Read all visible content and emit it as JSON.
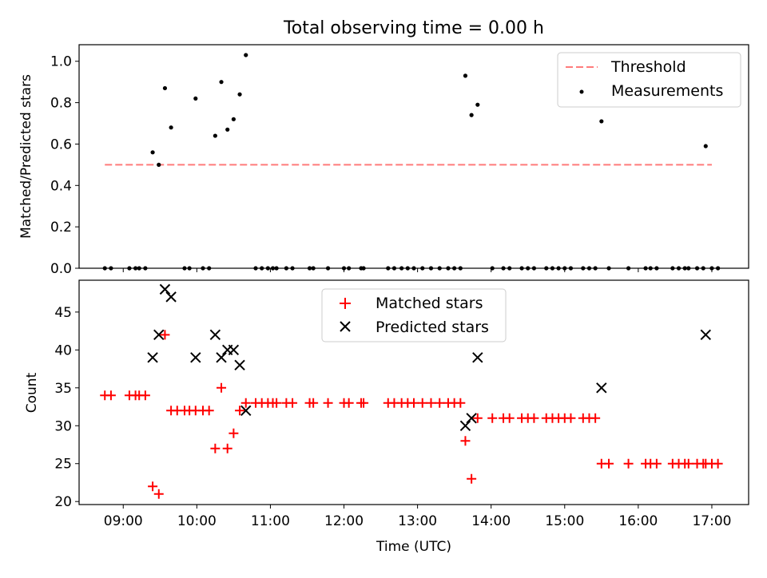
{
  "title": "Total observing time = 0.00 h",
  "colors": {
    "threshold": "#ff7b7b",
    "matched": "#ff0000",
    "predicted": "#000000",
    "measurement": "#000000"
  },
  "chart_data": [
    {
      "type": "scatter",
      "ylabel": "Matched/Predicted stars",
      "xlim": [
        "08:24",
        "17:30"
      ],
      "ylim": [
        0,
        1.08
      ],
      "y_ticks": [
        0.0,
        0.2,
        0.4,
        0.6,
        0.8,
        1.0
      ],
      "y_tick_labels": [
        "0.0",
        "0.2",
        "0.4",
        "0.6",
        "0.8",
        "1.0"
      ],
      "legend_position": "upper right",
      "series": [
        {
          "name": "Threshold",
          "style": "dashed-line",
          "x": [
            "08:45",
            "17:00"
          ],
          "y": [
            0.5,
            0.5
          ]
        },
        {
          "name": "Measurements",
          "style": "dot",
          "points": [
            [
              "08:45",
              0
            ],
            [
              "08:50",
              0
            ],
            [
              "09:05",
              0
            ],
            [
              "09:10",
              0
            ],
            [
              "09:13",
              0
            ],
            [
              "09:18",
              0
            ],
            [
              "09:24",
              0.56
            ],
            [
              "09:29",
              0.5
            ],
            [
              "09:34",
              0.87
            ],
            [
              "09:39",
              0.68
            ],
            [
              "09:50",
              0
            ],
            [
              "09:54",
              0
            ],
            [
              "09:59",
              0.82
            ],
            [
              "10:05",
              0
            ],
            [
              "10:10",
              0
            ],
            [
              "10:15",
              0.64
            ],
            [
              "10:20",
              0.9
            ],
            [
              "10:25",
              0.67
            ],
            [
              "10:30",
              0.72
            ],
            [
              "10:35",
              0.84
            ],
            [
              "10:40",
              1.03
            ],
            [
              "10:48",
              0
            ],
            [
              "10:53",
              0
            ],
            [
              "10:58",
              0
            ],
            [
              "11:02",
              0
            ],
            [
              "11:05",
              0
            ],
            [
              "11:13",
              0
            ],
            [
              "11:18",
              0
            ],
            [
              "11:32",
              0
            ],
            [
              "11:35",
              0
            ],
            [
              "11:47",
              0
            ],
            [
              "12:00",
              0
            ],
            [
              "12:04",
              0
            ],
            [
              "12:14",
              0
            ],
            [
              "12:16",
              0
            ],
            [
              "12:36",
              0
            ],
            [
              "12:41",
              0
            ],
            [
              "12:47",
              0
            ],
            [
              "12:52",
              0
            ],
            [
              "12:57",
              0
            ],
            [
              "13:04",
              0
            ],
            [
              "13:11",
              0
            ],
            [
              "13:18",
              0
            ],
            [
              "13:25",
              0
            ],
            [
              "13:30",
              0
            ],
            [
              "13:35",
              0
            ],
            [
              "13:39",
              0.93
            ],
            [
              "13:44",
              0.74
            ],
            [
              "13:49",
              0.79
            ],
            [
              "14:01",
              0
            ],
            [
              "14:10",
              0
            ],
            [
              "14:15",
              0
            ],
            [
              "14:25",
              0
            ],
            [
              "14:30",
              0
            ],
            [
              "14:35",
              0
            ],
            [
              "14:45",
              0
            ],
            [
              "14:50",
              0
            ],
            [
              "14:55",
              0
            ],
            [
              "15:00",
              0
            ],
            [
              "15:05",
              0
            ],
            [
              "15:15",
              0
            ],
            [
              "15:20",
              0
            ],
            [
              "15:25",
              0
            ],
            [
              "15:30",
              0.71
            ],
            [
              "15:36",
              0
            ],
            [
              "15:52",
              0
            ],
            [
              "16:06",
              0
            ],
            [
              "16:10",
              0
            ],
            [
              "16:15",
              0
            ],
            [
              "16:28",
              0
            ],
            [
              "16:33",
              0
            ],
            [
              "16:38",
              0
            ],
            [
              "16:41",
              0
            ],
            [
              "16:48",
              0
            ],
            [
              "16:53",
              0
            ],
            [
              "16:55",
              0.59
            ],
            [
              "17:00",
              0
            ],
            [
              "17:05",
              0
            ]
          ]
        }
      ]
    },
    {
      "type": "scatter",
      "ylabel": "Count",
      "xlabel": "Time (UTC)",
      "xlim": [
        "08:24",
        "17:30"
      ],
      "ylim": [
        19.6,
        49.2
      ],
      "y_ticks": [
        20,
        25,
        30,
        35,
        40,
        45
      ],
      "y_tick_labels": [
        "20",
        "25",
        "30",
        "35",
        "40",
        "45"
      ],
      "x_ticks": [
        "09:00",
        "10:00",
        "11:00",
        "12:00",
        "13:00",
        "14:00",
        "15:00",
        "16:00",
        "17:00"
      ],
      "x_tick_labels": [
        "09:00",
        "10:00",
        "11:00",
        "12:00",
        "13:00",
        "14:00",
        "15:00",
        "16:00",
        "17:00"
      ],
      "legend_position": "upper center",
      "series": [
        {
          "name": "Matched stars",
          "style": "plus",
          "points": [
            [
              "08:45",
              34
            ],
            [
              "08:50",
              34
            ],
            [
              "09:05",
              34
            ],
            [
              "09:10",
              34
            ],
            [
              "09:13",
              34
            ],
            [
              "09:18",
              34
            ],
            [
              "09:24",
              22
            ],
            [
              "09:29",
              21
            ],
            [
              "09:34",
              42
            ],
            [
              "09:39",
              32
            ],
            [
              "09:44",
              32
            ],
            [
              "09:50",
              32
            ],
            [
              "09:54",
              32
            ],
            [
              "09:59",
              32
            ],
            [
              "10:05",
              32
            ],
            [
              "10:10",
              32
            ],
            [
              "10:15",
              27
            ],
            [
              "10:20",
              35
            ],
            [
              "10:25",
              27
            ],
            [
              "10:30",
              29
            ],
            [
              "10:35",
              32
            ],
            [
              "10:40",
              33
            ],
            [
              "10:48",
              33
            ],
            [
              "10:53",
              33
            ],
            [
              "10:58",
              33
            ],
            [
              "11:02",
              33
            ],
            [
              "11:05",
              33
            ],
            [
              "11:13",
              33
            ],
            [
              "11:18",
              33
            ],
            [
              "11:32",
              33
            ],
            [
              "11:35",
              33
            ],
            [
              "11:47",
              33
            ],
            [
              "12:00",
              33
            ],
            [
              "12:04",
              33
            ],
            [
              "12:14",
              33
            ],
            [
              "12:16",
              33
            ],
            [
              "12:36",
              33
            ],
            [
              "12:41",
              33
            ],
            [
              "12:47",
              33
            ],
            [
              "12:52",
              33
            ],
            [
              "12:57",
              33
            ],
            [
              "13:04",
              33
            ],
            [
              "13:11",
              33
            ],
            [
              "13:18",
              33
            ],
            [
              "13:25",
              33
            ],
            [
              "13:30",
              33
            ],
            [
              "13:35",
              33
            ],
            [
              "13:39",
              28
            ],
            [
              "13:44",
              23
            ],
            [
              "13:49",
              31
            ],
            [
              "14:01",
              31
            ],
            [
              "14:10",
              31
            ],
            [
              "14:15",
              31
            ],
            [
              "14:25",
              31
            ],
            [
              "14:30",
              31
            ],
            [
              "14:35",
              31
            ],
            [
              "14:45",
              31
            ],
            [
              "14:50",
              31
            ],
            [
              "14:55",
              31
            ],
            [
              "15:00",
              31
            ],
            [
              "15:05",
              31
            ],
            [
              "15:15",
              31
            ],
            [
              "15:20",
              31
            ],
            [
              "15:25",
              31
            ],
            [
              "15:30",
              25
            ],
            [
              "15:36",
              25
            ],
            [
              "15:52",
              25
            ],
            [
              "16:06",
              25
            ],
            [
              "16:10",
              25
            ],
            [
              "16:15",
              25
            ],
            [
              "16:28",
              25
            ],
            [
              "16:33",
              25
            ],
            [
              "16:38",
              25
            ],
            [
              "16:41",
              25
            ],
            [
              "16:48",
              25
            ],
            [
              "16:53",
              25
            ],
            [
              "16:55",
              25
            ],
            [
              "17:00",
              25
            ],
            [
              "17:05",
              25
            ]
          ]
        },
        {
          "name": "Predicted stars",
          "style": "x",
          "points": [
            [
              "09:24",
              39
            ],
            [
              "09:29",
              42
            ],
            [
              "09:34",
              48
            ],
            [
              "09:39",
              47
            ],
            [
              "09:59",
              39
            ],
            [
              "10:15",
              42
            ],
            [
              "10:20",
              39
            ],
            [
              "10:25",
              40
            ],
            [
              "10:30",
              40
            ],
            [
              "10:35",
              38
            ],
            [
              "10:40",
              32
            ],
            [
              "13:39",
              30
            ],
            [
              "13:44",
              31
            ],
            [
              "13:49",
              39
            ],
            [
              "15:30",
              35
            ],
            [
              "16:55",
              42
            ]
          ]
        }
      ]
    }
  ]
}
